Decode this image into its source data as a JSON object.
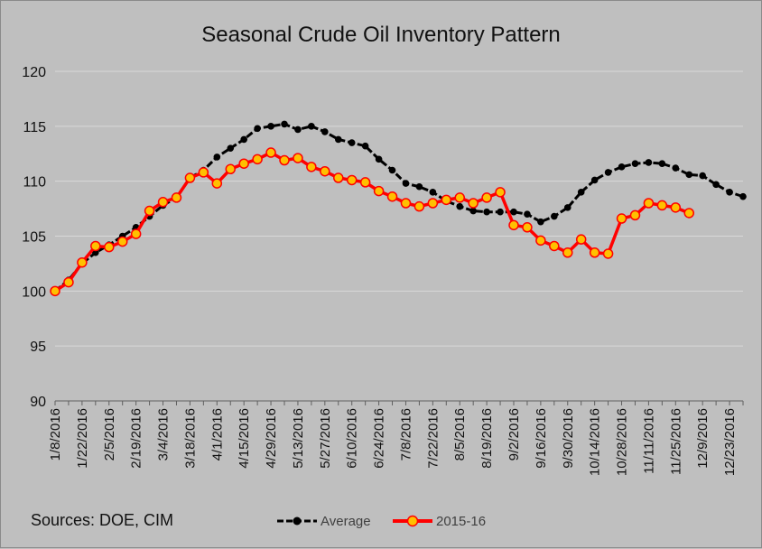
{
  "chart_data": {
    "type": "line",
    "title": "Seasonal Crude Oil Inventory Pattern",
    "xlabel": "",
    "ylabel": "",
    "ylim": [
      90,
      120
    ],
    "yticks": [
      90,
      95,
      100,
      105,
      110,
      115,
      120
    ],
    "x_tick_labels": [
      "1/8/2016",
      "1/22/2016",
      "2/5/2016",
      "2/19/2016",
      "3/4/2016",
      "3/18/2016",
      "4/1/2016",
      "4/15/2016",
      "4/29/2016",
      "5/13/2016",
      "5/27/2016",
      "6/10/2016",
      "6/24/2016",
      "7/8/2016",
      "7/22/2016",
      "8/5/2016",
      "8/19/2016",
      "9/2/2016",
      "9/16/2016",
      "9/30/2016",
      "10/14/2016",
      "10/28/2016",
      "11/11/2016",
      "11/25/2016",
      "12/9/2016",
      "12/23/2016"
    ],
    "grid": true,
    "legend_position": "bottom",
    "series": [
      {
        "name": "Average",
        "color": "#000000",
        "marker_color": "#000000",
        "values": [
          100.0,
          101.0,
          102.5,
          103.5,
          104.2,
          105.0,
          105.8,
          106.8,
          107.8,
          108.5,
          110.3,
          111.0,
          112.2,
          113.0,
          113.8,
          114.8,
          115.0,
          115.2,
          114.7,
          115.0,
          114.5,
          113.8,
          113.5,
          113.2,
          112.0,
          111.0,
          109.8,
          109.5,
          109.0,
          108.2,
          107.7,
          107.3,
          107.2,
          107.2,
          107.2,
          107.0,
          106.3,
          106.8,
          107.6,
          109.0,
          110.1,
          110.8,
          111.3,
          111.6,
          111.7,
          111.6,
          111.2,
          110.6,
          110.5,
          109.7,
          109.0,
          108.6
        ]
      },
      {
        "name": "2015-16",
        "color": "#ff0000",
        "marker_color": "#ffc000",
        "values": [
          100.0,
          100.8,
          102.6,
          104.1,
          104.0,
          104.5,
          105.2,
          107.3,
          108.1,
          108.5,
          110.3,
          110.8,
          109.8,
          111.1,
          111.6,
          112.0,
          112.6,
          111.9,
          112.1,
          111.3,
          110.9,
          110.3,
          110.1,
          109.9,
          109.1,
          108.6,
          108.0,
          107.7,
          108.0,
          108.3,
          108.5,
          108.0,
          108.5,
          109.0,
          106.0,
          105.8,
          104.6,
          104.1,
          103.5,
          104.7,
          103.5,
          103.4,
          106.6,
          106.9,
          108.0,
          107.8,
          107.6,
          107.1
        ]
      }
    ]
  },
  "footer": {
    "sources_text": "Sources:  DOE, CIM"
  },
  "colors": {
    "background": "#bfbfbf",
    "gridline": "#d9d9d9"
  }
}
